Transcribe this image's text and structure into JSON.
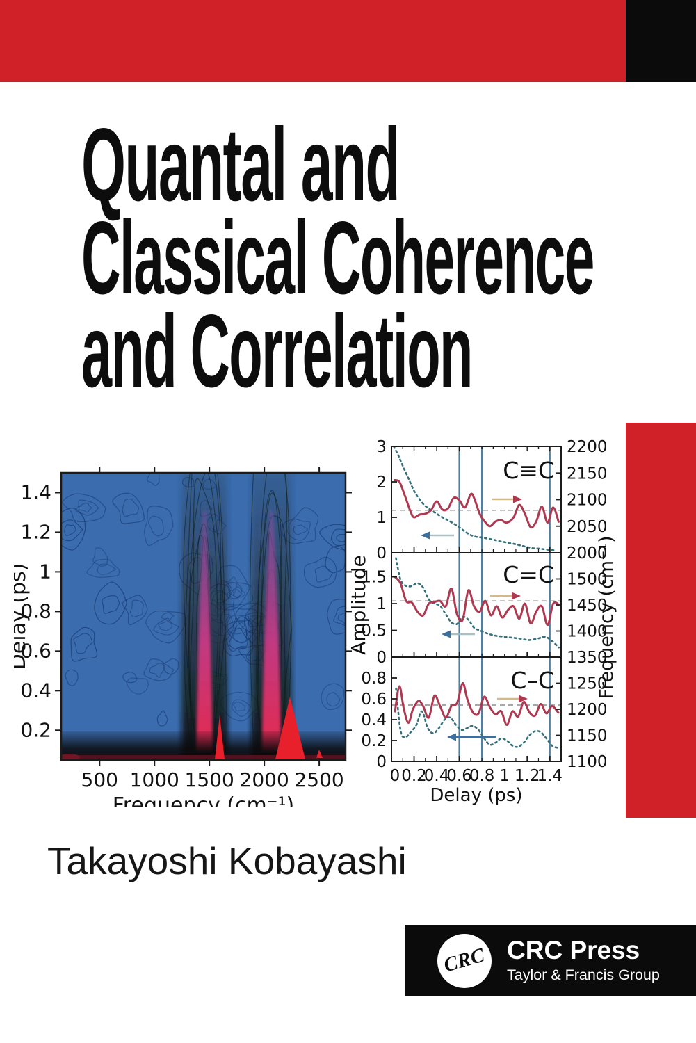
{
  "cover": {
    "title_lines": [
      "Quantal and",
      "Classical Coherence",
      "and Correlation"
    ],
    "author": "Takayoshi Kobayashi",
    "publisher": {
      "logo_text": "CRC",
      "name": "CRC Press",
      "group": "Taylor & Francis Group"
    },
    "colors": {
      "banner_red": "#d02028",
      "black": "#0b0b0b",
      "contour_bg": "#3a6cae",
      "contour_line": "#14336b",
      "band_dark": "#11180f",
      "band_magenta": "#c93a85",
      "band_violet": "#7b4fa0",
      "hot_red": "#e8202c",
      "maroon": "#5f1220",
      "curve_red": "#ae3950",
      "curve_teal": "#35707c",
      "vline": "#4d80a1",
      "frame": "#1b1b1b",
      "dash_gray": "#8a8a8a",
      "tail_tan": "#c9ae74",
      "tail_gray": "#9fb9bd",
      "arrow_blue": "#3a6f9f"
    }
  },
  "chart_data": [
    {
      "type": "heatmap",
      "xlabel": "Frequency (cm⁻¹)",
      "ylabel": "Delay (ps)",
      "xlim": [
        150,
        2740
      ],
      "ylim": [
        0.05,
        1.5
      ],
      "xticks": [
        500,
        1000,
        1500,
        2000,
        2500
      ],
      "xtick_labels": [
        "500",
        "1000",
        "1500",
        "2000",
        "2500"
      ],
      "yticks": [
        0.2,
        0.4,
        0.6,
        0.8,
        1.0,
        1.2,
        1.4
      ],
      "ytick_labels": [
        "0.2",
        "0.4",
        "0.6",
        "0.8",
        "1",
        "1.2",
        "1.4"
      ],
      "bands_cm": [
        1455,
        2065
      ]
    },
    {
      "type": "line",
      "xlabel": "Delay (ps)",
      "ylabel_left": "Amplitude",
      "ylabel_right": "Frequency (cm⁻¹)",
      "xlim": [
        0,
        1.5
      ],
      "xticks": [
        0,
        0.2,
        0.4,
        0.6,
        0.8,
        1,
        1.2,
        1.4
      ],
      "xtick_labels": [
        "0",
        "0.2",
        "0.4",
        "0.6",
        "0.8",
        "1",
        "1.2",
        "1.4"
      ],
      "vlines": [
        0.6,
        0.8,
        1.4
      ],
      "panels": [
        {
          "label": "C≡C",
          "left_range": [
            0,
            3
          ],
          "left_ticks": [
            0,
            1,
            2,
            3
          ],
          "left_tick_labels": [
            "0",
            "1",
            "2",
            "3"
          ],
          "right_range": [
            2000,
            2200
          ],
          "right_ticks": [
            2000,
            2050,
            2100,
            2150,
            2200
          ],
          "right_tick_labels": [
            "2000",
            "2050",
            "2100",
            "2150",
            "2200"
          ],
          "dashed_level": 1.2,
          "series": [
            {
              "name": "teal-dashed-amplitude",
              "style": "dashed",
              "arrow": "left",
              "x": [
                0.02,
                0.06,
                0.1,
                0.15,
                0.2,
                0.25,
                0.3,
                0.35,
                0.4,
                0.45,
                0.5,
                0.55,
                0.6,
                0.65,
                0.7,
                0.75,
                0.8,
                0.85,
                0.9,
                0.95,
                1.0,
                1.05,
                1.1,
                1.15,
                1.2,
                1.25,
                1.3,
                1.35,
                1.4,
                1.45
              ],
              "y": [
                3.0,
                2.75,
                2.45,
                2.1,
                1.75,
                1.5,
                1.32,
                1.2,
                1.1,
                1.0,
                0.92,
                0.82,
                0.72,
                0.6,
                0.5,
                0.45,
                0.43,
                0.4,
                0.37,
                0.33,
                0.3,
                0.27,
                0.24,
                0.2,
                0.16,
                0.13,
                0.12,
                0.1,
                0.08,
                0.07
              ]
            },
            {
              "name": "red-solid-frequency",
              "style": "solid",
              "arrow": "right",
              "x": [
                0.02,
                0.07,
                0.12,
                0.17,
                0.2,
                0.25,
                0.3,
                0.35,
                0.4,
                0.45,
                0.5,
                0.55,
                0.6,
                0.65,
                0.7,
                0.73,
                0.78,
                0.82,
                0.87,
                0.92,
                0.97,
                1.02,
                1.08,
                1.13,
                1.18,
                1.23,
                1.28,
                1.33,
                1.38,
                1.43,
                1.48
              ],
              "y": [
                2.05,
                2.0,
                1.6,
                1.15,
                1.0,
                1.08,
                1.1,
                1.2,
                1.45,
                1.22,
                1.25,
                1.55,
                1.48,
                1.28,
                1.65,
                1.55,
                1.1,
                0.9,
                0.75,
                0.88,
                0.92,
                0.85,
                1.0,
                1.35,
                1.1,
                0.72,
                0.88,
                1.3,
                0.85,
                1.28,
                0.85
              ]
            }
          ]
        },
        {
          "label": "C=C",
          "left_range": [
            0,
            1.95
          ],
          "left_ticks": [
            0,
            0.5,
            1,
            1.5
          ],
          "left_tick_labels": [
            "0",
            "0.5",
            "1",
            "1.5"
          ],
          "right_range": [
            1350,
            1550
          ],
          "right_ticks": [
            1350,
            1400,
            1450,
            1500
          ],
          "right_tick_labels": [
            "1350",
            "1400",
            "1450",
            "1500"
          ],
          "dashed_level": 1.05,
          "series": [
            {
              "name": "teal-dashed-amplitude",
              "style": "dashed",
              "arrow": "left",
              "x": [
                0.04,
                0.08,
                0.13,
                0.18,
                0.23,
                0.28,
                0.33,
                0.38,
                0.43,
                0.48,
                0.53,
                0.58,
                0.63,
                0.68,
                0.73,
                0.78,
                0.85,
                0.92,
                1.0,
                1.08,
                1.15,
                1.22,
                1.3,
                1.36,
                1.42,
                1.48
              ],
              "y": [
                1.85,
                1.45,
                1.33,
                1.33,
                1.38,
                1.3,
                1.08,
                1.0,
                0.96,
                0.8,
                0.65,
                0.62,
                0.75,
                0.7,
                0.55,
                0.5,
                0.44,
                0.4,
                0.38,
                0.36,
                0.34,
                0.32,
                0.35,
                0.38,
                0.3,
                0.18
              ]
            },
            {
              "name": "red-solid-frequency",
              "style": "solid",
              "arrow": "right",
              "x": [
                0.03,
                0.08,
                0.13,
                0.18,
                0.23,
                0.28,
                0.33,
                0.38,
                0.43,
                0.48,
                0.53,
                0.58,
                0.63,
                0.68,
                0.73,
                0.78,
                0.83,
                0.88,
                0.93,
                0.98,
                1.03,
                1.08,
                1.13,
                1.18,
                1.23,
                1.28,
                1.33,
                1.38,
                1.43,
                1.48
              ],
              "y": [
                1.5,
                1.38,
                1.05,
                1.02,
                0.85,
                0.78,
                1.0,
                1.03,
                1.05,
                0.95,
                1.28,
                0.8,
                0.7,
                1.25,
                0.95,
                0.85,
                1.05,
                0.78,
                0.95,
                0.74,
                0.88,
                0.95,
                0.72,
                1.0,
                0.63,
                0.85,
                0.95,
                0.6,
                1.0,
                0.98
              ]
            }
          ]
        },
        {
          "label": "C–C",
          "left_range": [
            0,
            1.0
          ],
          "left_ticks": [
            0,
            0.2,
            0.4,
            0.6,
            0.8
          ],
          "left_tick_labels": [
            "0",
            "0.2",
            "0.4",
            "0.6",
            "0.8"
          ],
          "right_range": [
            1100,
            1300
          ],
          "right_ticks": [
            1100,
            1150,
            1200,
            1250
          ],
          "right_tick_labels": [
            "1100",
            "1150",
            "1200",
            "1250"
          ],
          "dashed_level": 0.54,
          "series": [
            {
              "name": "teal-dashed-amplitude",
              "style": "dashed",
              "arrow": "left",
              "x": [
                0.04,
                0.08,
                0.12,
                0.17,
                0.22,
                0.27,
                0.32,
                0.37,
                0.42,
                0.47,
                0.52,
                0.57,
                0.62,
                0.67,
                0.72,
                0.77,
                0.82,
                0.87,
                0.92,
                0.97,
                1.02,
                1.07,
                1.12,
                1.17,
                1.22,
                1.27,
                1.32,
                1.37,
                1.42,
                1.47
              ],
              "y": [
                0.7,
                0.3,
                0.23,
                0.28,
                0.35,
                0.48,
                0.32,
                0.27,
                0.32,
                0.4,
                0.42,
                0.35,
                0.3,
                0.32,
                0.34,
                0.3,
                0.22,
                0.16,
                0.18,
                0.22,
                0.2,
                0.15,
                0.14,
                0.18,
                0.25,
                0.29,
                0.28,
                0.22,
                0.15,
                0.13
              ]
            },
            {
              "name": "red-solid-frequency",
              "style": "solid",
              "arrow": "right",
              "x": [
                0.03,
                0.07,
                0.11,
                0.15,
                0.19,
                0.24,
                0.28,
                0.33,
                0.38,
                0.43,
                0.48,
                0.53,
                0.58,
                0.63,
                0.67,
                0.72,
                0.77,
                0.82,
                0.87,
                0.92,
                0.97,
                1.02,
                1.07,
                1.12,
                1.17,
                1.22,
                1.27,
                1.32,
                1.37,
                1.42,
                1.48
              ],
              "y": [
                0.47,
                0.72,
                0.5,
                0.37,
                0.5,
                0.58,
                0.53,
                0.42,
                0.63,
                0.53,
                0.42,
                0.53,
                0.56,
                0.75,
                0.6,
                0.47,
                0.46,
                0.62,
                0.52,
                0.45,
                0.48,
                0.35,
                0.48,
                0.43,
                0.57,
                0.47,
                0.44,
                0.55,
                0.46,
                0.53,
                0.46
              ]
            }
          ]
        }
      ]
    }
  ]
}
